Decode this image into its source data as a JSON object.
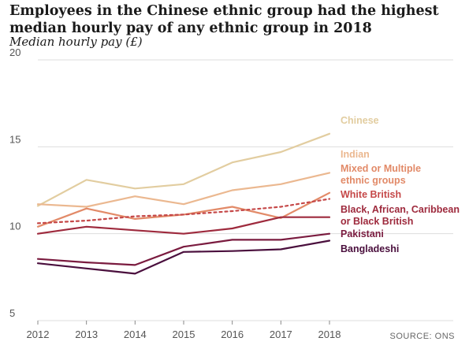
{
  "chart_data": {
    "type": "line",
    "title": "Employees in the Chinese ethnic group had the highest median hourly pay of any ethnic group in 2018",
    "subtitle": "Median hourly pay (£)",
    "source": "SOURCE: ONS",
    "x": [
      2012,
      2013,
      2014,
      2015,
      2016,
      2017,
      2018
    ],
    "ylim": [
      5,
      20
    ],
    "yticks": [
      5,
      10,
      15,
      20
    ],
    "grid": true,
    "series": [
      {
        "name": "Chinese",
        "label_lines": [
          "Chinese"
        ],
        "color": "#e2cda0",
        "dashed": false,
        "values": [
          11.6,
          13.1,
          12.6,
          12.85,
          14.1,
          14.7,
          15.75
        ]
      },
      {
        "name": "Indian",
        "label_lines": [
          "Indian"
        ],
        "color": "#ebb890",
        "dashed": false,
        "values": [
          11.7,
          11.55,
          12.15,
          11.7,
          12.5,
          12.85,
          13.5
        ]
      },
      {
        "name": "Mixed or Multiple ethnic groups",
        "label_lines": [
          "Mixed or Multiple",
          "ethnic groups"
        ],
        "color": "#e28a68",
        "dashed": false,
        "values": [
          10.4,
          11.45,
          10.85,
          11.1,
          11.55,
          10.9,
          12.35
        ]
      },
      {
        "name": "White British",
        "label_lines": [
          "White British"
        ],
        "color": "#c54848",
        "dashed": true,
        "values": [
          10.6,
          10.75,
          11.0,
          11.1,
          11.3,
          11.55,
          12.0
        ]
      },
      {
        "name": "Black, African, Caribbean or Black British",
        "label_lines": [
          "Black, African, Caribbean",
          "or Black British"
        ],
        "color": "#9e2a3d",
        "dashed": false,
        "values": [
          10.0,
          10.4,
          10.2,
          10.0,
          10.3,
          10.95,
          10.95
        ]
      },
      {
        "name": "Pakistani",
        "label_lines": [
          "Pakistani"
        ],
        "color": "#7a1b3f",
        "dashed": false,
        "values": [
          8.55,
          8.35,
          8.2,
          9.25,
          9.65,
          9.65,
          10.0
        ]
      },
      {
        "name": "Bangladeshi",
        "label_lines": [
          "Bangladeshi"
        ],
        "color": "#4a0f3d",
        "dashed": false,
        "values": [
          8.3,
          8.0,
          7.7,
          8.95,
          9.0,
          9.1,
          9.6
        ]
      }
    ]
  }
}
